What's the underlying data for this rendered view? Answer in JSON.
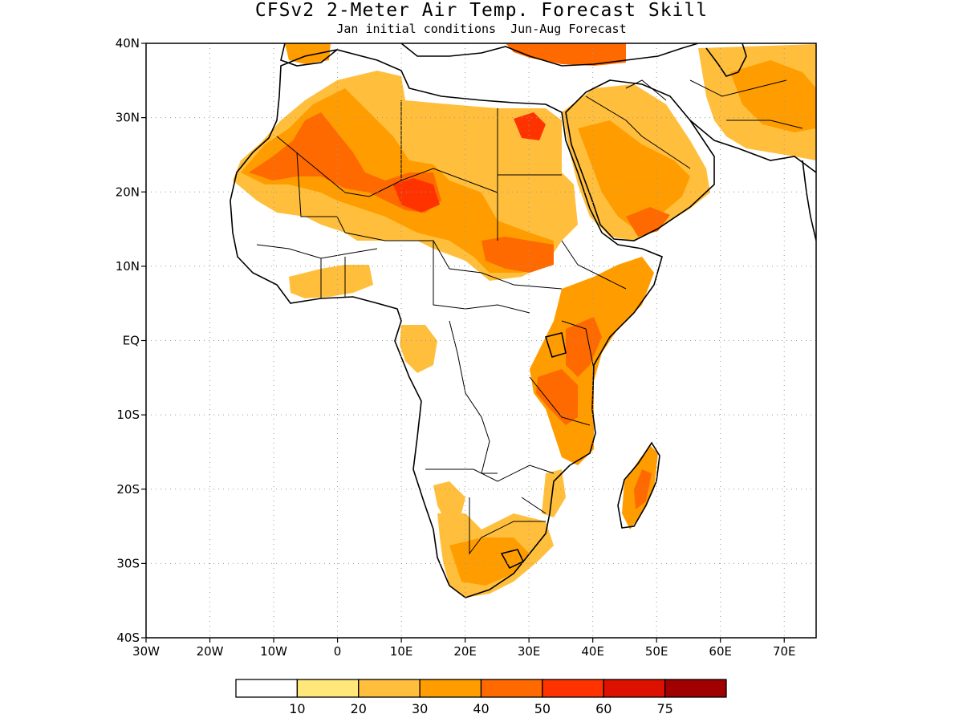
{
  "title": "CFSv2 2-Meter Air Temp. Forecast Skill",
  "subtitle_left": "Jan initial conditions",
  "subtitle_right": "Jun-Aug Forecast",
  "map": {
    "lon_range": [
      -30,
      75
    ],
    "lat_range": [
      -40,
      40
    ],
    "lat_ticks": [
      {
        "value": 40,
        "label": "40N"
      },
      {
        "value": 30,
        "label": "30N"
      },
      {
        "value": 20,
        "label": "20N"
      },
      {
        "value": 10,
        "label": "10N"
      },
      {
        "value": 0,
        "label": "EQ"
      },
      {
        "value": -10,
        "label": "10S"
      },
      {
        "value": -20,
        "label": "20S"
      },
      {
        "value": -30,
        "label": "30S"
      },
      {
        "value": -40,
        "label": "40S"
      }
    ],
    "lon_ticks": [
      {
        "value": -30,
        "label": "30W"
      },
      {
        "value": -20,
        "label": "20W"
      },
      {
        "value": -10,
        "label": "10W"
      },
      {
        "value": 0,
        "label": "0"
      },
      {
        "value": 10,
        "label": "10E"
      },
      {
        "value": 20,
        "label": "20E"
      },
      {
        "value": 30,
        "label": "30E"
      },
      {
        "value": 40,
        "label": "40E"
      },
      {
        "value": 50,
        "label": "50E"
      },
      {
        "value": 60,
        "label": "60E"
      },
      {
        "value": 70,
        "label": "70E"
      }
    ],
    "grid": "dotted"
  },
  "colorbar": {
    "colors": [
      "#ffffff",
      "#ffe77a",
      "#ffbf3c",
      "#ff9d00",
      "#ff6a00",
      "#ff3300",
      "#dd1100",
      "#a00000"
    ],
    "labels": [
      "10",
      "20",
      "30",
      "40",
      "50",
      "60",
      "75"
    ]
  }
}
